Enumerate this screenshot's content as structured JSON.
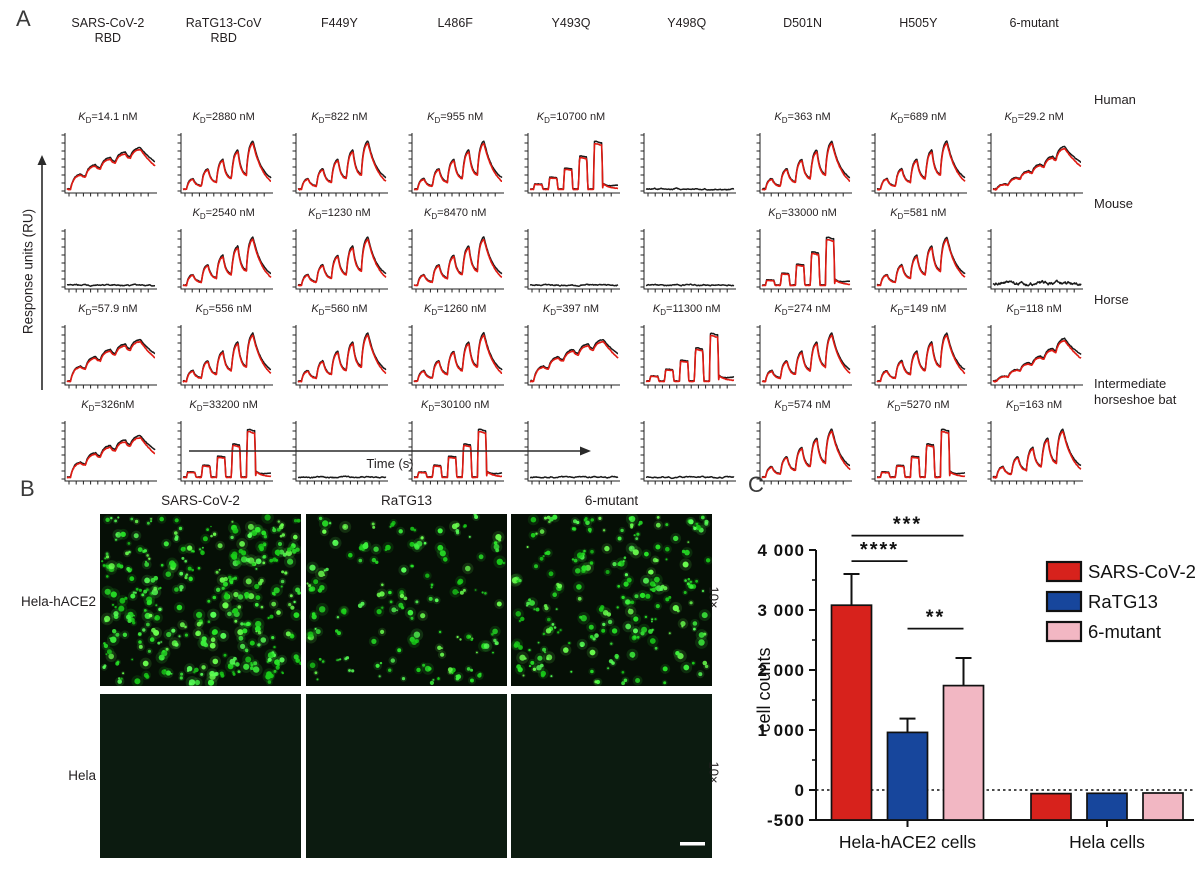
{
  "panelA": {
    "label": "A",
    "y_axis_label": "Response units (RU)",
    "x_axis_label": "Time (s)",
    "kd_prefix": {
      "symbol": "K",
      "sub": "D",
      "eq": "="
    },
    "col_headers": [
      "SARS-CoV-2\nRBD",
      "RaTG13-CoV\nRBD",
      "F449Y",
      "L486F",
      "Y493Q",
      "Y498Q",
      "D501N",
      "H505Y",
      "6-mutant"
    ],
    "row_labels": [
      "Human",
      "Mouse",
      "Horse",
      "Intermediate horseshoe bat"
    ],
    "cells": [
      {
        "kd": "14.1 nM",
        "type": "humps"
      },
      {
        "kd": "2880 nM",
        "type": "peaks"
      },
      {
        "kd": "822 nM",
        "type": "peaks"
      },
      {
        "kd": "955 nM",
        "type": "peaks"
      },
      {
        "kd": "10700 nM",
        "type": "squares"
      },
      {
        "kd": "",
        "type": "flat"
      },
      {
        "kd": "363 nM",
        "type": "peaks"
      },
      {
        "kd": "689 nM",
        "type": "peaks"
      },
      {
        "kd": "29.2 nM",
        "type": "ramp"
      },
      {
        "kd": "",
        "type": "flat"
      },
      {
        "kd": "2540 nM",
        "type": "peaks"
      },
      {
        "kd": "1230 nM",
        "type": "peaks"
      },
      {
        "kd": "8470 nM",
        "type": "peaks"
      },
      {
        "kd": "",
        "type": "flat"
      },
      {
        "kd": "",
        "type": "flat"
      },
      {
        "kd": "33000 nM",
        "type": "squares"
      },
      {
        "kd": "581 nM",
        "type": "peaks"
      },
      {
        "kd": "",
        "type": "noisy"
      },
      {
        "kd": "57.9 nM",
        "type": "humps"
      },
      {
        "kd": "556 nM",
        "type": "peaks"
      },
      {
        "kd": "560 nM",
        "type": "peaks"
      },
      {
        "kd": "1260 nM",
        "type": "peaks"
      },
      {
        "kd": "397 nM",
        "type": "humps"
      },
      {
        "kd": "11300 nM",
        "type": "squares"
      },
      {
        "kd": "274 nM",
        "type": "peaks"
      },
      {
        "kd": "149 nM",
        "type": "peaks"
      },
      {
        "kd": "118 nM",
        "type": "ramp"
      },
      {
        "kd": "326nM",
        "type": "humps"
      },
      {
        "kd": "33200 nM",
        "type": "squares"
      },
      {
        "kd": "",
        "type": "flat"
      },
      {
        "kd": "30100 nM",
        "type": "squares"
      },
      {
        "kd": "",
        "type": "flat"
      },
      {
        "kd": "",
        "type": "flat"
      },
      {
        "kd": "574 nM",
        "type": "peaks"
      },
      {
        "kd": "5270 nM",
        "type": "squares"
      },
      {
        "kd": "163 nM",
        "type": "peaks"
      }
    ],
    "curve_colors": {
      "fit": "#e01a12",
      "data": "#1a1a1a"
    }
  },
  "panelB": {
    "label": "B",
    "col_headers": [
      "SARS-CoV-2",
      "RaTG13",
      "6-mutant"
    ],
    "row_labels": [
      "Hela-hACE2",
      "Hela"
    ],
    "magnification": "10×",
    "densities": [
      300,
      130,
      190
    ],
    "colors": {
      "background_top": "#060f06",
      "background_bottom": "#0c1b10",
      "dots": [
        "#27e527",
        "#3df23d",
        "#56ff56",
        "#19cc19",
        "#6aff4e"
      ]
    }
  },
  "panelC": {
    "label": "C"
  },
  "chart_data": {
    "type": "bar",
    "title": "",
    "xlabel": "",
    "ylabel": "cell counts",
    "groups": [
      "Hela-hACE2 cells",
      "Hela cells"
    ],
    "series": [
      {
        "name": "SARS-CoV-2",
        "color": "#d7221c",
        "values": [
          3080,
          -60
        ],
        "errors": [
          520,
          0
        ]
      },
      {
        "name": "RaTG13",
        "color": "#17469c",
        "values": [
          960,
          -55
        ],
        "errors": [
          230,
          0
        ]
      },
      {
        "name": "6-mutant",
        "color": "#f2b7c3",
        "values": [
          1740,
          -50
        ],
        "errors": [
          460,
          0
        ]
      }
    ],
    "ylim": [
      -500,
      4000
    ],
    "yticks": [
      {
        "v": 4000,
        "label": "4 000"
      },
      {
        "v": 3000,
        "label": "3 000"
      },
      {
        "v": 2000,
        "label": "2 000"
      },
      {
        "v": 1000,
        "label": "1 000"
      },
      {
        "v": 0,
        "label": "0"
      },
      {
        "v": -500,
        "label": "-500"
      }
    ],
    "minor_ticks": [
      3500,
      2500,
      1500,
      500
    ],
    "zero_line": "dotted",
    "legend_position": "top-right",
    "significance": [
      {
        "a": 0,
        "b": 1,
        "label": "****",
        "y": 3815
      },
      {
        "a": 0,
        "b": 2,
        "label": "***",
        "y": 4240
      },
      {
        "a": 1,
        "b": 2,
        "label": "**",
        "y": 2690
      }
    ]
  }
}
